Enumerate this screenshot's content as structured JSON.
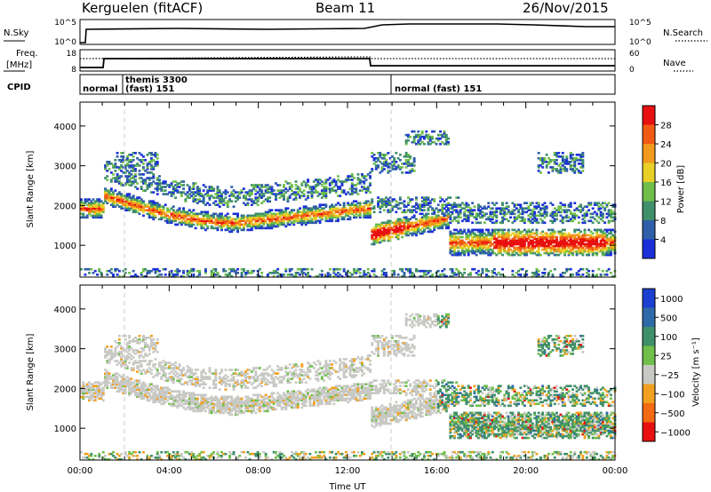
{
  "header": {
    "station": "Kerguelen (fitACF)",
    "beam": "Beam 11",
    "date": "26/Nov/2015"
  },
  "strip": {
    "nsky_label": "N.Sky",
    "nsky_ticks": [
      "10^5",
      "10^0"
    ],
    "nsearch_label": "N.Search",
    "freq_label": "Freq.",
    "freq_unit": "[MHz]",
    "freq_ticks": [
      "18",
      "8"
    ],
    "nave_ticks": [
      "60",
      "0"
    ],
    "nave_label": "Nave",
    "cpid_label": "CPID",
    "nsearch_ticks": [
      "10^5",
      "10^0"
    ],
    "cpid_segments": [
      {
        "label": "normal",
        "start_h": 0.0,
        "end_h": 1.0
      },
      {
        "label": "themis 3300",
        "label2": "(fast) 151",
        "start_h": 1.0,
        "end_h": 14.0
      },
      {
        "label": "normal (fast) 151",
        "start_h": 14.0,
        "end_h": 24.0
      }
    ]
  },
  "chart_data": [
    {
      "type": "heatmap",
      "name": "power",
      "ylabel": "Slant Range [km]",
      "yticks": [
        "1000",
        "2000",
        "3000",
        "4000"
      ],
      "ylim": [
        200,
        4600
      ],
      "colorbar_label": "Power [dB]",
      "colorbar_ticks": [
        "4",
        "8",
        "12",
        "16",
        "20",
        "24",
        "28"
      ],
      "colors": [
        "#1b2fd9",
        "#2f5fa8",
        "#3f8f6a",
        "#6fbf4a",
        "#e8d028",
        "#f29a1e",
        "#f25a14",
        "#e81010"
      ]
    },
    {
      "type": "heatmap",
      "name": "velocity",
      "ylabel": "Slant Range [km]",
      "yticks": [
        "1000",
        "2000",
        "3000",
        "4000"
      ],
      "ylim": [
        200,
        4600
      ],
      "xlabel": "Time UT",
      "xticks": [
        "00:00",
        "04:00",
        "08:00",
        "12:00",
        "16:00",
        "20:00",
        "00:00"
      ],
      "colorbar_label": "Velocity [m s⁻¹]",
      "colorbar_ticks": [
        "1000",
        "500",
        "100",
        "25",
        "−25",
        "−100",
        "−500",
        "−1000"
      ],
      "colors": [
        "#1b3fd0",
        "#2f6aa8",
        "#3f8f6a",
        "#6fbf4a",
        "#c8c8c4",
        "#f2a020",
        "#f26a14",
        "#e81010"
      ]
    }
  ]
}
